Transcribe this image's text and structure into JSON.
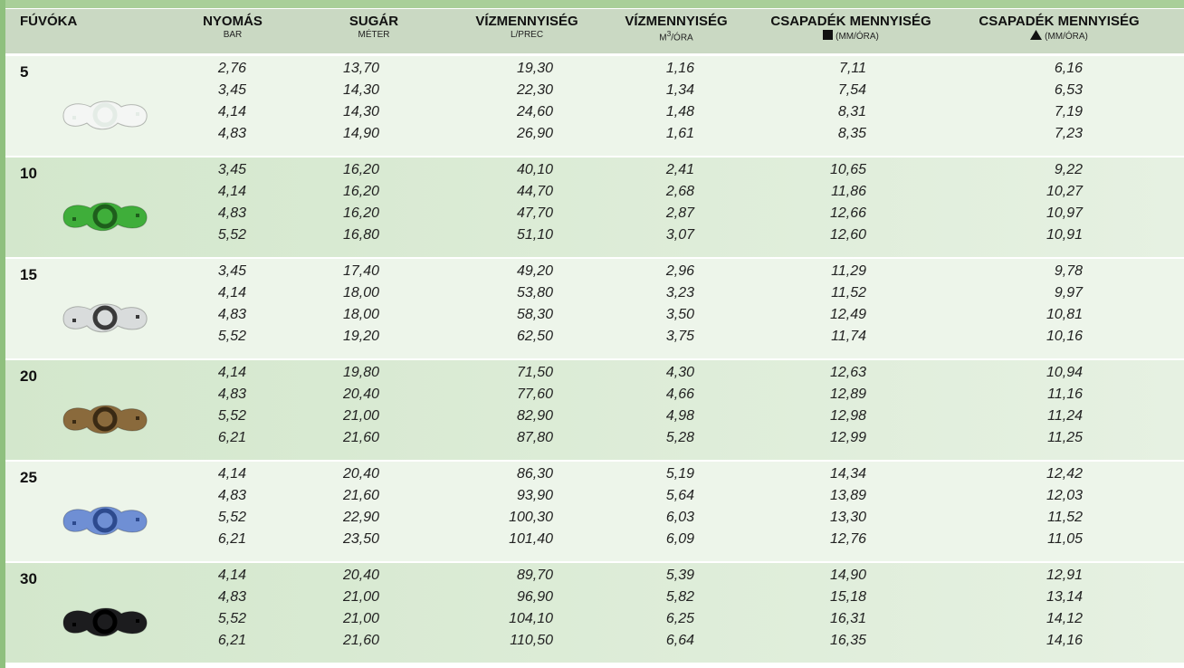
{
  "header": {
    "columns": [
      {
        "title": "FÚVÓKA"
      },
      {
        "title": "NYOMÁS",
        "unit": "BAR"
      },
      {
        "title": "SUGÁR",
        "unit": "MÉTER"
      },
      {
        "title": "VÍZMENNYISÉG",
        "unit": "L/PREC"
      },
      {
        "title": "VÍZMENNYISÉG",
        "unit_main": "M",
        "unit_sup": "3",
        "unit_rest": "/ÓRA"
      },
      {
        "title": "CSAPADÉK MENNYISÉG",
        "unit": "(MM/ÓRA)"
      },
      {
        "title": "CSAPADÉK MENNYISÉG",
        "unit": "(MM/ÓRA)"
      }
    ]
  },
  "groups": [
    {
      "nozzle": "5",
      "rows": [
        [
          "2,76",
          "13,70",
          "19,30",
          "1,16",
          "7,11",
          "6,16"
        ],
        [
          "3,45",
          "14,30",
          "22,30",
          "1,34",
          "7,54",
          "6,53"
        ],
        [
          "4,14",
          "14,30",
          "24,60",
          "1,48",
          "8,31",
          "7,19"
        ],
        [
          "4,83",
          "14,90",
          "26,90",
          "1,61",
          "8,35",
          "7,23"
        ]
      ]
    },
    {
      "nozzle": "10",
      "rows": [
        [
          "3,45",
          "16,20",
          "40,10",
          "2,41",
          "10,65",
          "9,22"
        ],
        [
          "4,14",
          "16,20",
          "44,70",
          "2,68",
          "11,86",
          "10,27"
        ],
        [
          "4,83",
          "16,20",
          "47,70",
          "2,87",
          "12,66",
          "10,97"
        ],
        [
          "5,52",
          "16,80",
          "51,10",
          "3,07",
          "12,60",
          "10,91"
        ]
      ]
    },
    {
      "nozzle": "15",
      "rows": [
        [
          "3,45",
          "17,40",
          "49,20",
          "2,96",
          "11,29",
          "9,78"
        ],
        [
          "4,14",
          "18,00",
          "53,80",
          "3,23",
          "11,52",
          "9,97"
        ],
        [
          "4,83",
          "18,00",
          "58,30",
          "3,50",
          "12,49",
          "10,81"
        ],
        [
          "5,52",
          "19,20",
          "62,50",
          "3,75",
          "11,74",
          "10,16"
        ]
      ]
    },
    {
      "nozzle": "20",
      "rows": [
        [
          "4,14",
          "19,80",
          "71,50",
          "4,30",
          "12,63",
          "10,94"
        ],
        [
          "4,83",
          "20,40",
          "77,60",
          "4,66",
          "12,89",
          "11,16"
        ],
        [
          "5,52",
          "21,00",
          "82,90",
          "4,98",
          "12,98",
          "11,24"
        ],
        [
          "6,21",
          "21,60",
          "87,80",
          "5,28",
          "12,99",
          "11,25"
        ]
      ]
    },
    {
      "nozzle": "25",
      "rows": [
        [
          "4,14",
          "20,40",
          "86,30",
          "5,19",
          "14,34",
          "12,42"
        ],
        [
          "4,83",
          "21,60",
          "93,90",
          "5,64",
          "13,89",
          "12,03"
        ],
        [
          "5,52",
          "22,90",
          "100,30",
          "6,03",
          "13,30",
          "11,52"
        ],
        [
          "6,21",
          "23,50",
          "101,40",
          "6,09",
          "12,76",
          "11,05"
        ]
      ]
    },
    {
      "nozzle": "30",
      "rows": [
        [
          "4,14",
          "20,40",
          "89,70",
          "5,39",
          "14,90",
          "12,91"
        ],
        [
          "4,83",
          "21,00",
          "96,90",
          "5,82",
          "15,18",
          "13,14"
        ],
        [
          "5,52",
          "21,00",
          "104,10",
          "6,25",
          "16,31",
          "14,12"
        ],
        [
          "6,21",
          "21,60",
          "110,50",
          "6,64",
          "16,35",
          "14,16"
        ]
      ]
    }
  ]
}
